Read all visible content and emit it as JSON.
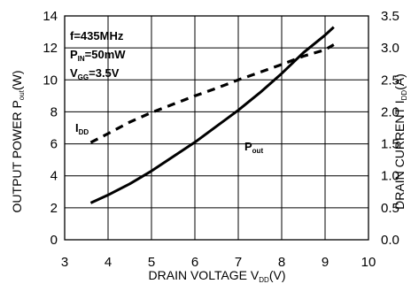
{
  "chart_data": {
    "type": "line",
    "title": "",
    "xlabel": {
      "main": "DRAIN VOLTAGE V",
      "sub": "DD",
      "unit": "(V)"
    },
    "ylabel_left": {
      "main": "OUTPUT POWER P",
      "sub": "out",
      "unit": "(W)"
    },
    "ylabel_right": {
      "main": "DRAIN CURRENT I",
      "sub": "DD",
      "unit": "(A)"
    },
    "xlim": [
      3,
      10
    ],
    "ylim_left": [
      0,
      14
    ],
    "ylim_right": [
      0,
      3.5
    ],
    "x_ticks": [
      "3",
      "4",
      "5",
      "6",
      "7",
      "8",
      "9",
      "10"
    ],
    "y_ticks_left": [
      "0",
      "2",
      "4",
      "6",
      "8",
      "10",
      "12",
      "14"
    ],
    "y_ticks_right": [
      "0.0",
      "0.5",
      "1.0",
      "1.5",
      "2.0",
      "2.5",
      "3.0",
      "3.5"
    ],
    "grid": true,
    "conditions": [
      {
        "main": "f=435MHz",
        "sub": "",
        "tail": ""
      },
      {
        "main": "P",
        "sub": "IN",
        "tail": "=50mW"
      },
      {
        "main": "V",
        "sub": "GG",
        "tail": "=3.5V"
      }
    ],
    "series": [
      {
        "name": "P",
        "name_sub": "out",
        "axis": "left",
        "style": "solid",
        "x": [
          3.6,
          4.0,
          4.5,
          5.0,
          5.5,
          6.0,
          6.5,
          7.0,
          7.5,
          8.0,
          8.5,
          9.0,
          9.2
        ],
        "values": [
          2.3,
          2.8,
          3.5,
          4.3,
          5.2,
          6.1,
          7.1,
          8.1,
          9.2,
          10.4,
          11.7,
          12.8,
          13.3
        ]
      },
      {
        "name": "I",
        "name_sub": "DD",
        "axis": "right",
        "style": "dashed",
        "x": [
          3.6,
          4.0,
          4.5,
          5.0,
          5.5,
          6.0,
          6.5,
          7.0,
          7.5,
          8.0,
          8.5,
          9.0,
          9.2
        ],
        "values": [
          1.52,
          1.66,
          1.84,
          1.99,
          2.12,
          2.25,
          2.37,
          2.5,
          2.62,
          2.74,
          2.87,
          2.97,
          3.05
        ]
      }
    ]
  }
}
